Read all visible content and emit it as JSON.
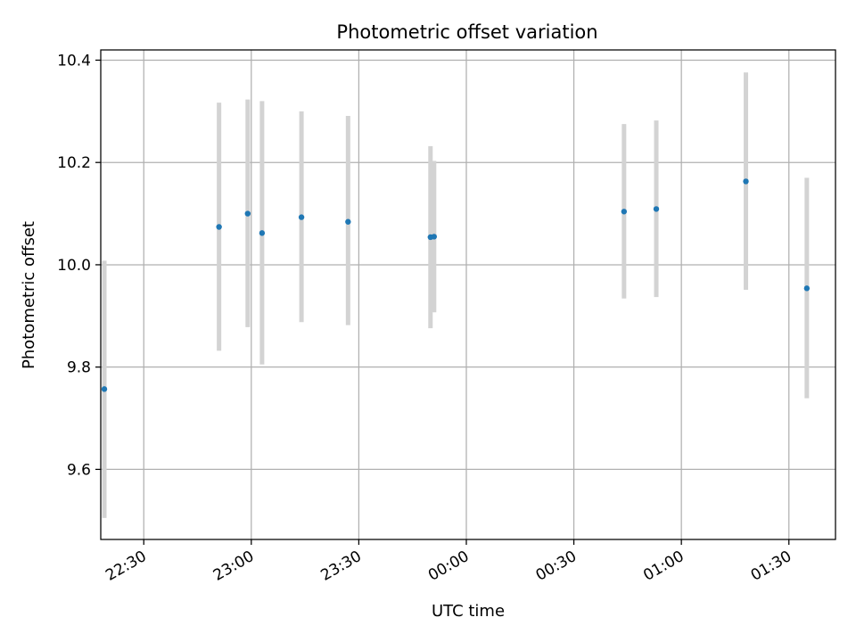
{
  "chart_data": {
    "type": "scatter",
    "title": "Photometric offset variation",
    "xlabel": "UTC time",
    "ylabel": "Photometric offset",
    "xlim": [
      "22:18",
      "01:43"
    ],
    "ylim": [
      9.463,
      10.42
    ],
    "grid": true,
    "x_ticks": [
      "22:30",
      "23:00",
      "23:30",
      "00:00",
      "00:30",
      "01:00",
      "01:30"
    ],
    "y_ticks": [
      "9.6",
      "9.8",
      "10.0",
      "10.2",
      "10.4"
    ],
    "y_tick_values": [
      9.6,
      9.8,
      10.0,
      10.2,
      10.4
    ],
    "point_color": "#1f77b4",
    "errorbar_color": "#d3d3d3",
    "points": [
      {
        "time": "22:19",
        "y": 9.757,
        "err_low": 9.505,
        "err_high": 10.008
      },
      {
        "time": "22:51",
        "y": 10.074,
        "err_low": 9.832,
        "err_high": 10.317
      },
      {
        "time": "22:59",
        "y": 10.1,
        "err_low": 9.878,
        "err_high": 10.323
      },
      {
        "time": "23:03",
        "y": 10.062,
        "err_low": 9.805,
        "err_high": 10.32
      },
      {
        "time": "23:14",
        "y": 10.093,
        "err_low": 9.888,
        "err_high": 10.3
      },
      {
        "time": "23:27",
        "y": 10.084,
        "err_low": 9.882,
        "err_high": 10.291
      },
      {
        "time": "23:50",
        "y": 10.054,
        "err_low": 9.876,
        "err_high": 10.232
      },
      {
        "time": "23:51",
        "y": 10.055,
        "err_low": 9.907,
        "err_high": 10.203
      },
      {
        "time": "00:44",
        "y": 10.104,
        "err_low": 9.934,
        "err_high": 10.275
      },
      {
        "time": "00:53",
        "y": 10.109,
        "err_low": 9.937,
        "err_high": 10.282
      },
      {
        "time": "01:18",
        "y": 10.163,
        "err_low": 9.951,
        "err_high": 10.376
      },
      {
        "time": "01:35",
        "y": 9.954,
        "err_low": 9.739,
        "err_high": 10.17
      }
    ]
  }
}
